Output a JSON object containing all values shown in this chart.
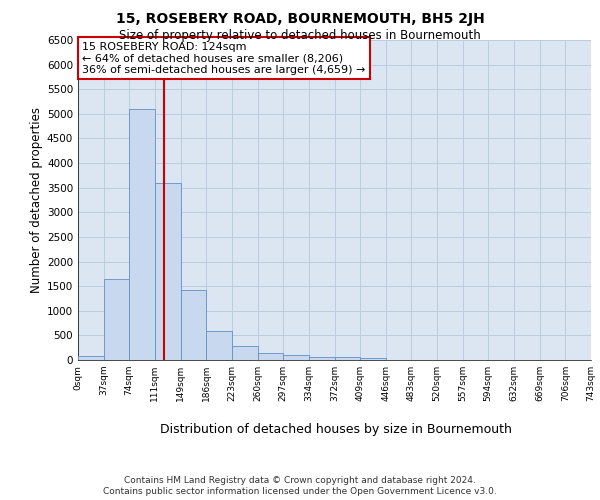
{
  "title": "15, ROSEBERY ROAD, BOURNEMOUTH, BH5 2JH",
  "subtitle": "Size of property relative to detached houses in Bournemouth",
  "xlabel": "Distribution of detached houses by size in Bournemouth",
  "ylabel": "Number of detached properties",
  "footer_line1": "Contains HM Land Registry data © Crown copyright and database right 2024.",
  "footer_line2": "Contains public sector information licensed under the Open Government Licence v3.0.",
  "annotation_line1": "15 ROSEBERY ROAD: 124sqm",
  "annotation_line2": "← 64% of detached houses are smaller (8,206)",
  "annotation_line3": "36% of semi-detached houses are larger (4,659) →",
  "property_size": 124,
  "bar_color": "#c8d8ee",
  "bar_edge_color": "#6090c8",
  "vline_color": "#cc0000",
  "annotation_box_color": "#ffffff",
  "annotation_box_edge": "#cc0000",
  "plot_bg_color": "#dce6f2",
  "grid_color": "#b8cce0",
  "bin_edges": [
    0,
    37,
    74,
    111,
    149,
    186,
    223,
    260,
    297,
    334,
    372,
    409,
    446,
    483,
    520,
    557,
    594,
    632,
    669,
    706,
    743
  ],
  "bar_heights": [
    75,
    1650,
    5100,
    3600,
    1430,
    590,
    290,
    150,
    100,
    55,
    55,
    50,
    0,
    0,
    0,
    0,
    0,
    0,
    0,
    0
  ],
  "ylim": [
    0,
    6500
  ],
  "yticks": [
    0,
    500,
    1000,
    1500,
    2000,
    2500,
    3000,
    3500,
    4000,
    4500,
    5000,
    5500,
    6000,
    6500
  ]
}
